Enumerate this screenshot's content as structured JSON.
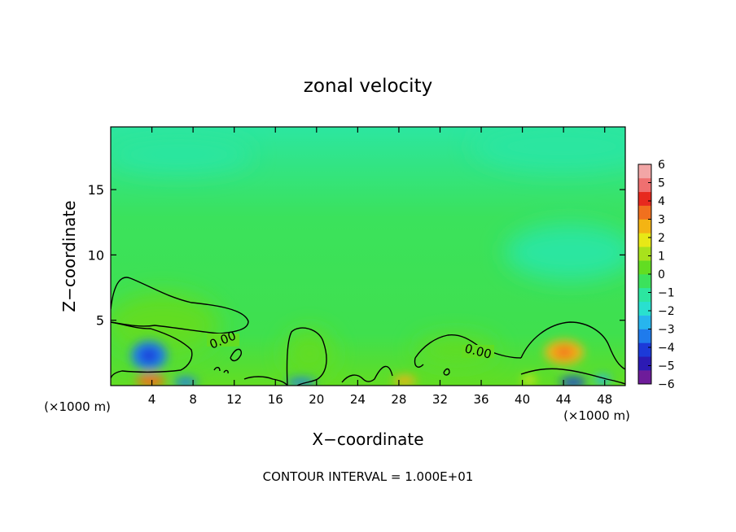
{
  "chart_data": {
    "type": "heatmap",
    "title": "zonal velocity",
    "xlabel": "X−coordinate",
    "ylabel": "Z−coordinate",
    "x_unit_left": "(×1000 m)",
    "x_unit_right": "(×1000 m)",
    "xlim": [
      0,
      50
    ],
    "ylim": [
      0,
      19.8
    ],
    "x_ticks": [
      4,
      8,
      12,
      16,
      20,
      24,
      28,
      32,
      36,
      40,
      44,
      48
    ],
    "x_tick_labels": [
      "4",
      "8",
      "12",
      "16",
      "20",
      "24",
      "28",
      "32",
      "36",
      "40",
      "44",
      "48"
    ],
    "y_ticks": [
      5,
      10,
      15
    ],
    "y_tick_labels": [
      "5",
      "10",
      "15"
    ],
    "colorbar": {
      "min": -6,
      "max": 6,
      "tick_values": [
        6,
        5,
        4,
        3,
        2,
        1,
        0,
        -1,
        -2,
        -3,
        -4,
        -5,
        -6
      ],
      "tick_labels": [
        "6",
        "5",
        "4",
        "3",
        "2",
        "1",
        "0",
        "−1",
        "−2",
        "−3",
        "−4",
        "−5",
        "−6"
      ],
      "colors": [
        "#6e1c9a",
        "#2c1ab4",
        "#1c3ad8",
        "#1f7bec",
        "#27b5ee",
        "#29e0cf",
        "#2ce6a0",
        "#3be25c",
        "#62dd22",
        "#a8e21c",
        "#e8e816",
        "#f4b413",
        "#f1701e",
        "#e7291e",
        "#ef7070",
        "#f2a6a6"
      ]
    },
    "contour_label_1": "0.00",
    "contour_label_2": "0.00",
    "contour_interval_text": "CONTOUR INTERVAL =  1.000E+01",
    "features": [
      {
        "x": 3.7,
        "z": 2.3,
        "value": -3.5
      },
      {
        "x": 4.2,
        "z": 0.3,
        "value": 3.5
      },
      {
        "x": 7.5,
        "z": 0.3,
        "value": -2.5
      },
      {
        "x": 18.5,
        "z": 0.3,
        "value": -2.0
      },
      {
        "x": 28.5,
        "z": 0.3,
        "value": 3.0
      },
      {
        "x": 44.2,
        "z": 2.6,
        "value": 3.0
      },
      {
        "x": 44.7,
        "z": 0.2,
        "value": -4.5
      },
      {
        "x": 18.6,
        "z": 2.6,
        "value": 1.3
      },
      {
        "x": 43.0,
        "z": 11.0,
        "value": -1.0
      }
    ]
  }
}
